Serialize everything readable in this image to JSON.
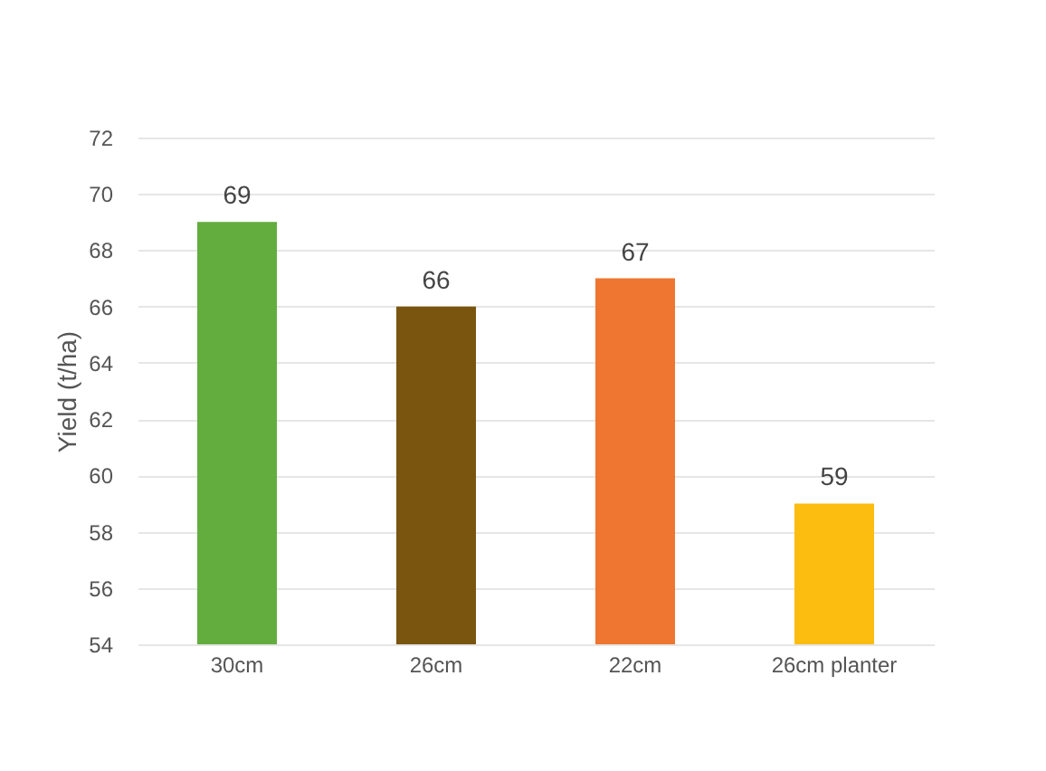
{
  "chart_data": {
    "type": "bar",
    "ylabel": "Yield (t/ha)",
    "categories": [
      "30cm",
      "26cm",
      "22cm",
      "26cm planter"
    ],
    "values": [
      69,
      66,
      67,
      59
    ],
    "colors": [
      "#62ad3e",
      "#7a5510",
      "#ee7630",
      "#fcbd10"
    ],
    "ylim": [
      54,
      72
    ],
    "yticks": [
      54,
      56,
      58,
      60,
      62,
      64,
      66,
      68,
      70,
      72
    ],
    "grid": "y",
    "data_labels": true
  }
}
